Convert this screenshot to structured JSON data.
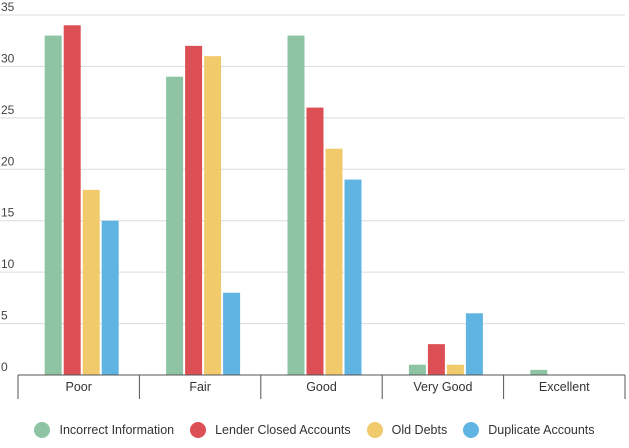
{
  "chart_data": {
    "type": "bar",
    "title": "",
    "xlabel": "",
    "ylabel": "",
    "categories": [
      "Poor",
      "Fair",
      "Good",
      "Very Good",
      "Excellent"
    ],
    "ylim": [
      0,
      35
    ],
    "yticks": [
      0,
      5,
      10,
      15,
      20,
      25,
      30,
      35
    ],
    "ytick_labels": [
      "0",
      "5",
      "10",
      "15",
      "20",
      "25",
      "30",
      "35"
    ],
    "grid": true,
    "legend_position": "bottom",
    "series": [
      {
        "name": "Incorrect Information",
        "color": "#8ec4a3",
        "values": [
          33,
          29,
          33,
          1,
          0.5
        ]
      },
      {
        "name": "Lender Closed Accounts",
        "color": "#dc5055",
        "values": [
          34,
          32,
          26,
          3,
          0
        ]
      },
      {
        "name": "Old Debts",
        "color": "#f0ca6b",
        "values": [
          18,
          31,
          22,
          1,
          0
        ]
      },
      {
        "name": "Duplicate Accounts",
        "color": "#60b4e2",
        "values": [
          15,
          8,
          19,
          6,
          0
        ]
      }
    ]
  }
}
